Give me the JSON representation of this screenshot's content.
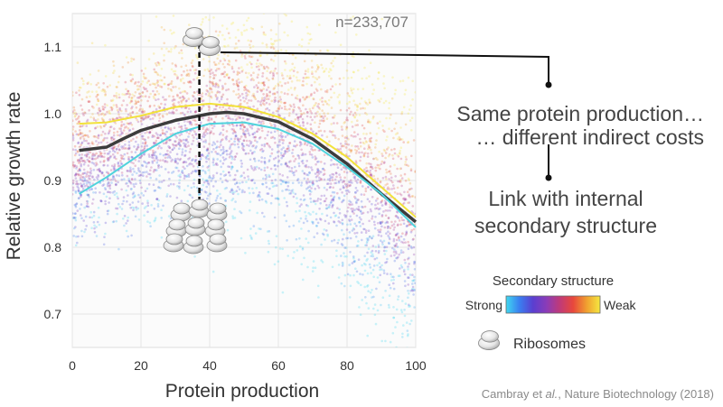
{
  "chart_data": {
    "type": "scatter",
    "ylabel": "Relative growth rate",
    "xlabel": "Protein production",
    "xlim": [
      0,
      100
    ],
    "ylim": [
      0.65,
      1.15
    ],
    "xticks": [
      "0",
      "20",
      "40",
      "60",
      "80",
      "100"
    ],
    "xtick_values": [
      0,
      20,
      40,
      60,
      80,
      100
    ],
    "yticks": [
      "0.7",
      "0.8",
      "0.9",
      "1.0",
      "1.1"
    ],
    "ytick_values": [
      0.7,
      0.8,
      0.9,
      1.0,
      1.1
    ],
    "grid": true,
    "sample_size": "n=233,707",
    "series": [
      {
        "color": "#f2e23a",
        "x": [
          2,
          10,
          20,
          30,
          40,
          50,
          60,
          70,
          80,
          90,
          100
        ],
        "y": [
          0.985,
          0.987,
          0.997,
          1.01,
          1.015,
          1.01,
          0.995,
          0.97,
          0.935,
          0.89,
          0.845
        ]
      },
      {
        "color": "#3c3c3c",
        "x": [
          2,
          10,
          15,
          20,
          30,
          40,
          45,
          50,
          60,
          70,
          80,
          90,
          100
        ],
        "y": [
          0.945,
          0.95,
          0.963,
          0.975,
          0.99,
          1.0,
          1.002,
          1.0,
          0.988,
          0.962,
          0.925,
          0.88,
          0.838
        ]
      },
      {
        "color": "#4fd3dc",
        "x": [
          2,
          10,
          20,
          30,
          40,
          50,
          60,
          70,
          80,
          90,
          100
        ],
        "y": [
          0.88,
          0.905,
          0.94,
          0.97,
          0.985,
          0.987,
          0.977,
          0.955,
          0.92,
          0.88,
          0.83
        ]
      }
    ],
    "marker_x": 37,
    "legend": {
      "title": "Secondary structure",
      "low_label": "Strong",
      "high_label": "Weak",
      "colors": [
        "#40d8f0",
        "#3a7ef0",
        "#5a3fd0",
        "#8a3cb8",
        "#c03a78",
        "#e8483c",
        "#f0a030",
        "#f5e840"
      ]
    }
  },
  "annotations": {
    "line1": "Same protein production…",
    "line2": "… different indirect costs",
    "line3": "Link with internal",
    "line4": "secondary structure"
  },
  "ribosome_legend": "Ribosomes",
  "citation_prefix": "Cambray et ",
  "citation_italic": "al.",
  "citation_suffix": ", Nature Biotechnology (2018)"
}
